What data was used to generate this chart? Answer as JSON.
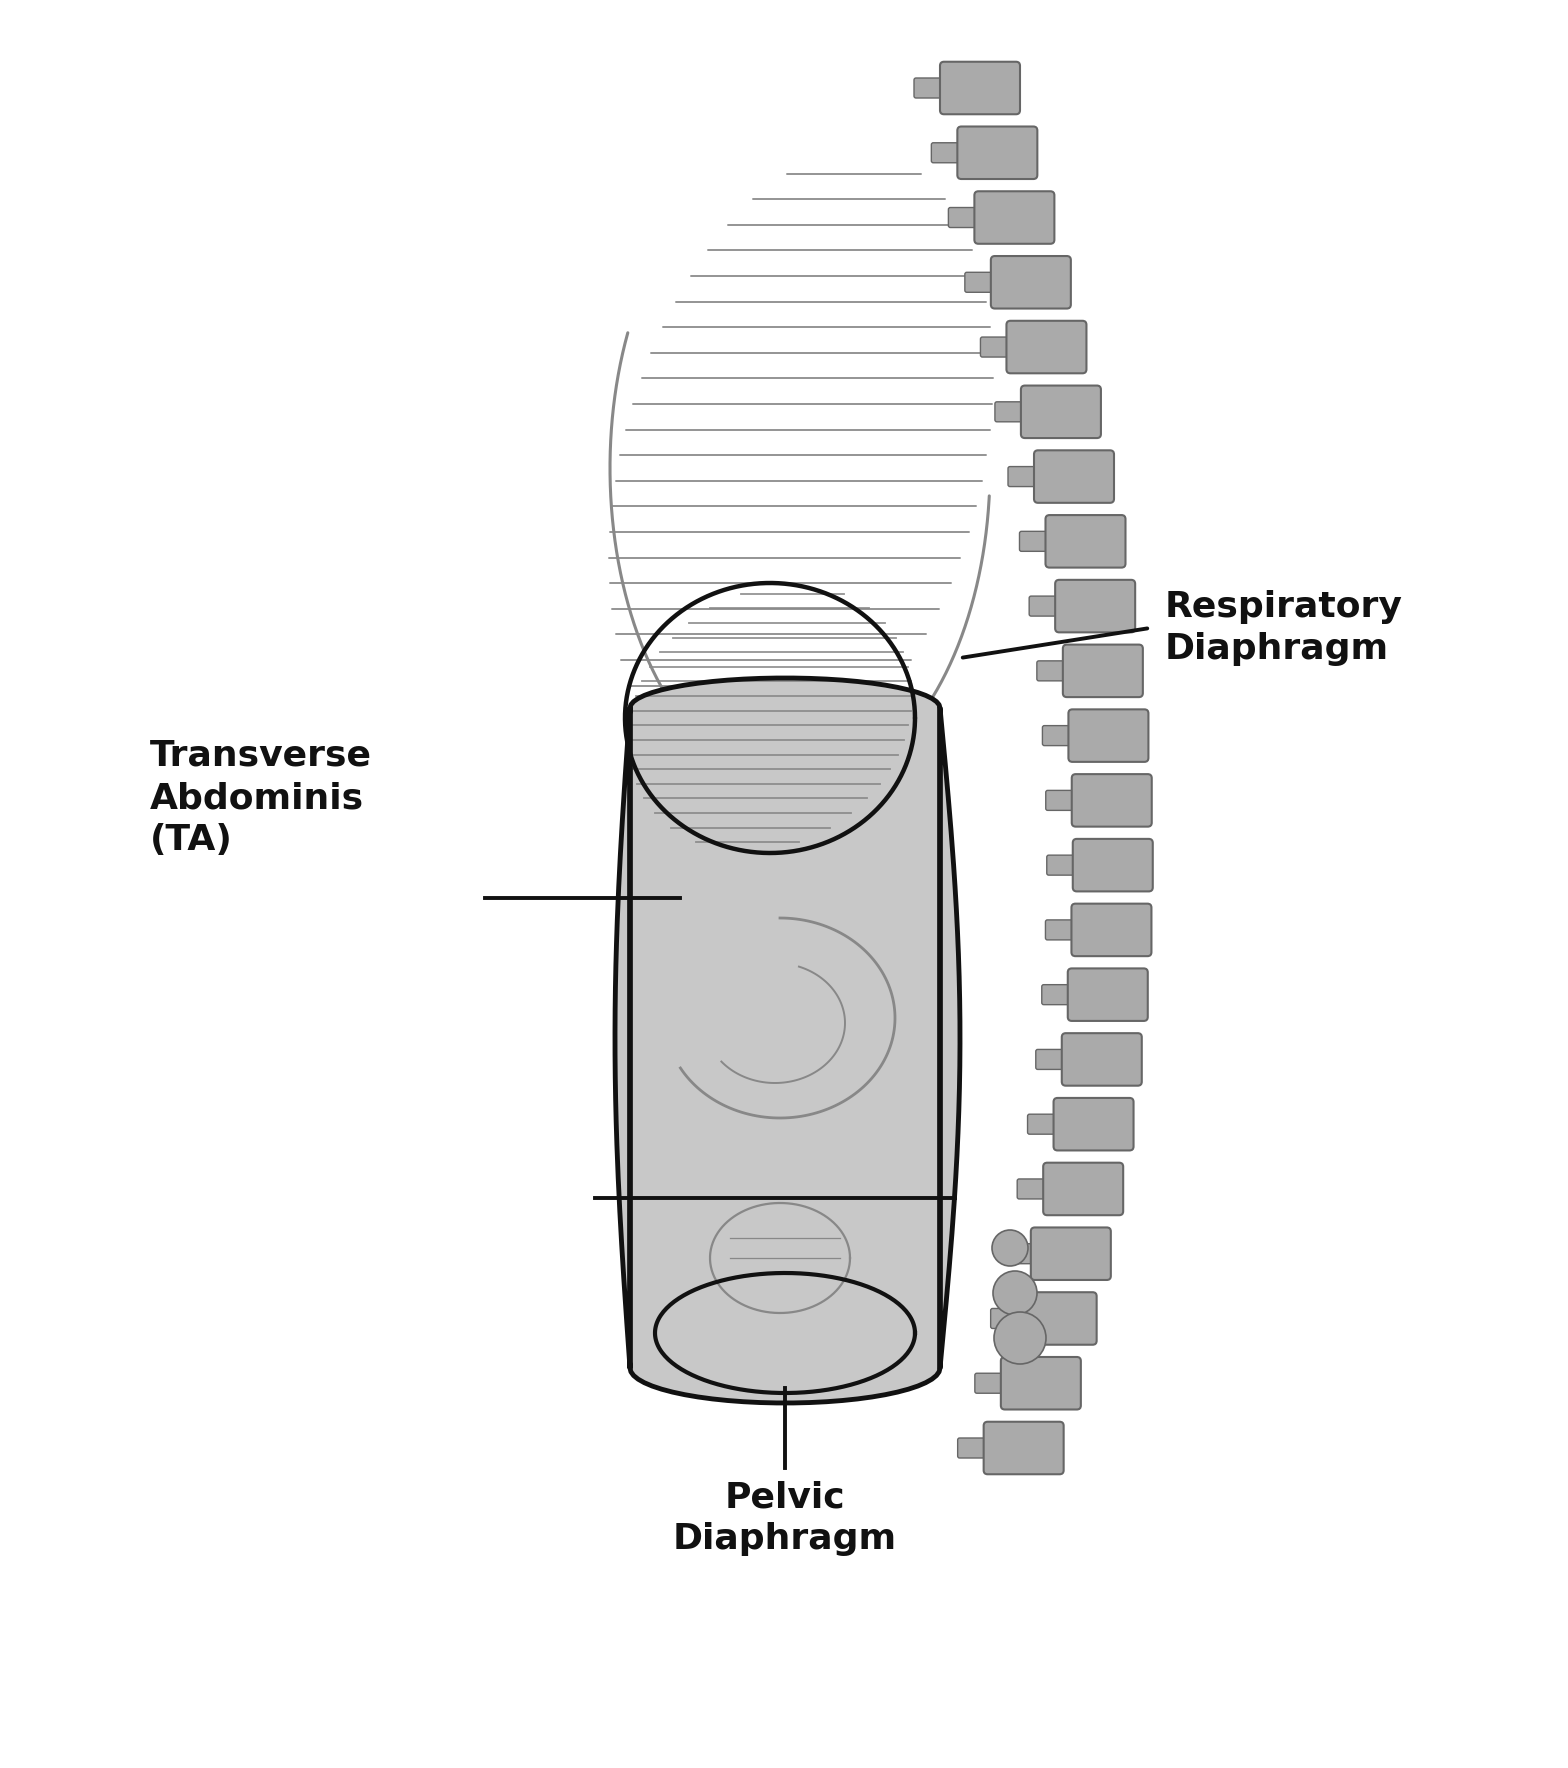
{
  "background_color": "#ffffff",
  "gray_color": "#888888",
  "dark_gray": "#666666",
  "black": "#111111",
  "spine_color": "#aaaaaa",
  "fill_gray": "#c8c8c8",
  "rib_hatch_color": "#999999",
  "labels": {
    "respiratory": "Respiratory\nDiaphragm",
    "ta": "Transverse\nAbdominis\n(TA)",
    "pelvic": "Pelvic\nDiaphragm"
  },
  "label_fontsize": 26,
  "figsize": [
    15.68,
    17.68
  ]
}
